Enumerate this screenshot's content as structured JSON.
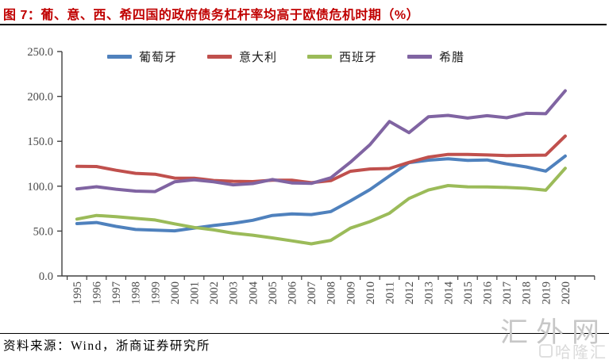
{
  "title": {
    "text": "图 7：葡、意、西、希四国的政府债务杠杆率均高于欧债危机时期（%）"
  },
  "footer": {
    "source": "资料来源：Wind，浙商证券研究所"
  },
  "watermark": {
    "primary": "汇外网",
    "secondary": "哈隆汇"
  },
  "colors": {
    "title": "#C00000",
    "axis": "#404040",
    "tick_label": "#4a4a4a",
    "portugal": "#4F81BD",
    "italy": "#C0504D",
    "spain": "#9BBB59",
    "greece": "#8064A2"
  },
  "chart_data": {
    "type": "line",
    "title": "葡、意、西、希四国的政府债务杠杆率均高于欧债危机时期（%）",
    "xlabel": "",
    "ylabel": "",
    "x": [
      1995,
      1996,
      1997,
      1998,
      1999,
      2000,
      2001,
      2002,
      2003,
      2004,
      2005,
      2006,
      2007,
      2008,
      2009,
      2010,
      2011,
      2012,
      2013,
      2014,
      2015,
      2016,
      2017,
      2018,
      2019,
      2020
    ],
    "series": [
      {
        "key": "portugal",
        "name": "葡萄牙",
        "color": "#4F81BD",
        "values": [
          58.3,
          59.5,
          55.2,
          51.8,
          51.0,
          50.3,
          53.4,
          56.2,
          58.7,
          62.0,
          67.4,
          69.2,
          68.4,
          71.7,
          83.6,
          96.2,
          111.4,
          126.2,
          129.0,
          130.6,
          128.8,
          129.2,
          124.8,
          121.5,
          116.8,
          133.6
        ]
      },
      {
        "key": "italy",
        "name": "意大利",
        "color": "#C0504D",
        "values": [
          122.1,
          121.9,
          117.8,
          114.3,
          113.3,
          109.0,
          108.9,
          106.4,
          105.5,
          105.1,
          106.6,
          106.7,
          103.9,
          106.2,
          116.6,
          119.2,
          119.7,
          126.5,
          132.4,
          135.4,
          135.3,
          134.8,
          134.1,
          134.4,
          134.6,
          155.8
        ]
      },
      {
        "key": "spain",
        "name": "西班牙",
        "color": "#9BBB59",
        "values": [
          63.3,
          67.4,
          66.1,
          64.1,
          62.4,
          58.0,
          54.1,
          51.3,
          47.7,
          45.4,
          42.4,
          39.1,
          35.8,
          39.7,
          53.3,
          60.5,
          69.9,
          86.3,
          95.8,
          100.7,
          99.3,
          99.2,
          98.6,
          97.6,
          95.5,
          120.0
        ]
      },
      {
        "key": "greece",
        "name": "希腊",
        "color": "#8064A2",
        "values": [
          97.0,
          99.4,
          96.6,
          94.5,
          94.0,
          104.9,
          107.1,
          104.9,
          101.5,
          102.9,
          107.4,
          103.6,
          103.1,
          109.4,
          126.7,
          146.2,
          172.1,
          159.6,
          177.4,
          178.9,
          175.9,
          178.5,
          176.2,
          181.2,
          180.7,
          206.3
        ]
      }
    ],
    "ylim": [
      0,
      250
    ],
    "ytick_step": 50,
    "ytick_labels": [
      "0.0",
      "50.0",
      "100.0",
      "150.0",
      "200.0",
      "250.0"
    ],
    "grid": false,
    "legend_position": "top-center"
  }
}
